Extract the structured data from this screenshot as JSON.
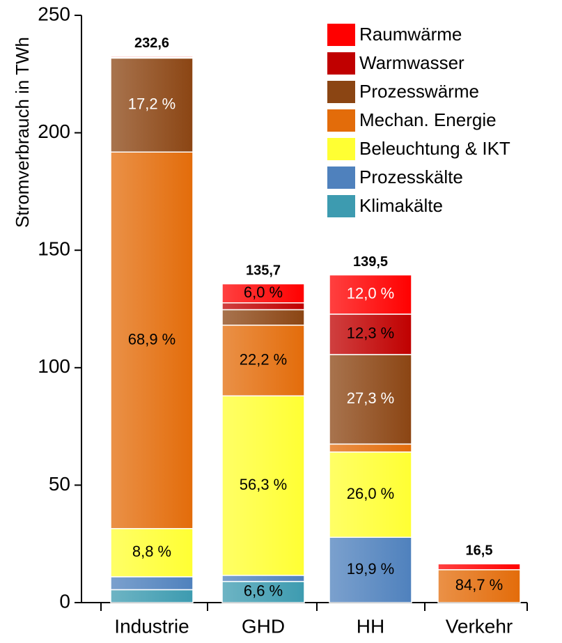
{
  "chart_data": {
    "type": "stacked_bar",
    "y_label": "Stromverbrauch in TWh",
    "categories": [
      "Industrie",
      "GHD",
      "HH",
      "Verkehr"
    ],
    "ylim": [
      0,
      250
    ],
    "yticks": [
      0,
      50,
      100,
      150,
      200,
      250
    ],
    "totals": [
      232.6,
      135.7,
      139.5,
      16.5
    ],
    "total_labels": [
      "232,6",
      "135,7",
      "139,5",
      "16,5"
    ],
    "legend": "top-right",
    "series": [
      {
        "name": "Klimakälte",
        "color": "#3d9bb0",
        "values": [
          5.5,
          9.0,
          0,
          0
        ],
        "share_labels": [
          null,
          "6,6 %",
          null,
          null
        ]
      },
      {
        "name": "Prozesskälte",
        "color": "#4f81bd",
        "values": [
          5.5,
          2.6,
          27.8,
          0
        ],
        "share_labels": [
          null,
          null,
          "19,9 %",
          null
        ]
      },
      {
        "name": "Beleuchtung & IKT",
        "color": "#ffff33",
        "values": [
          20.5,
          76.4,
          36.3,
          0
        ],
        "share_labels": [
          "8,8 %",
          "56,3 %",
          "26,0 %",
          null
        ]
      },
      {
        "name": "Mechan. Energie",
        "color": "#e36c0a",
        "values": [
          160.3,
          30.1,
          3.4,
          14.0
        ],
        "share_labels": [
          "68,9 %",
          "22,2 %",
          null,
          "84,7 %"
        ]
      },
      {
        "name": "Prozesswärme",
        "color": "#8b4513",
        "values": [
          40.0,
          6.6,
          38.1,
          0
        ],
        "share_labels": [
          "17,2 %",
          null,
          "27,3 %",
          null
        ]
      },
      {
        "name": "Warmwasser",
        "color": "#c00000",
        "values": [
          0.3,
          2.9,
          17.2,
          0
        ],
        "share_labels": [
          null,
          null,
          "12,3 %",
          null
        ]
      },
      {
        "name": "Raumwärme",
        "color": "#ff0000",
        "values": [
          0.5,
          8.1,
          16.7,
          2.5
        ],
        "share_labels": [
          null,
          "6,0 %",
          "12,0 %",
          null
        ]
      }
    ]
  }
}
